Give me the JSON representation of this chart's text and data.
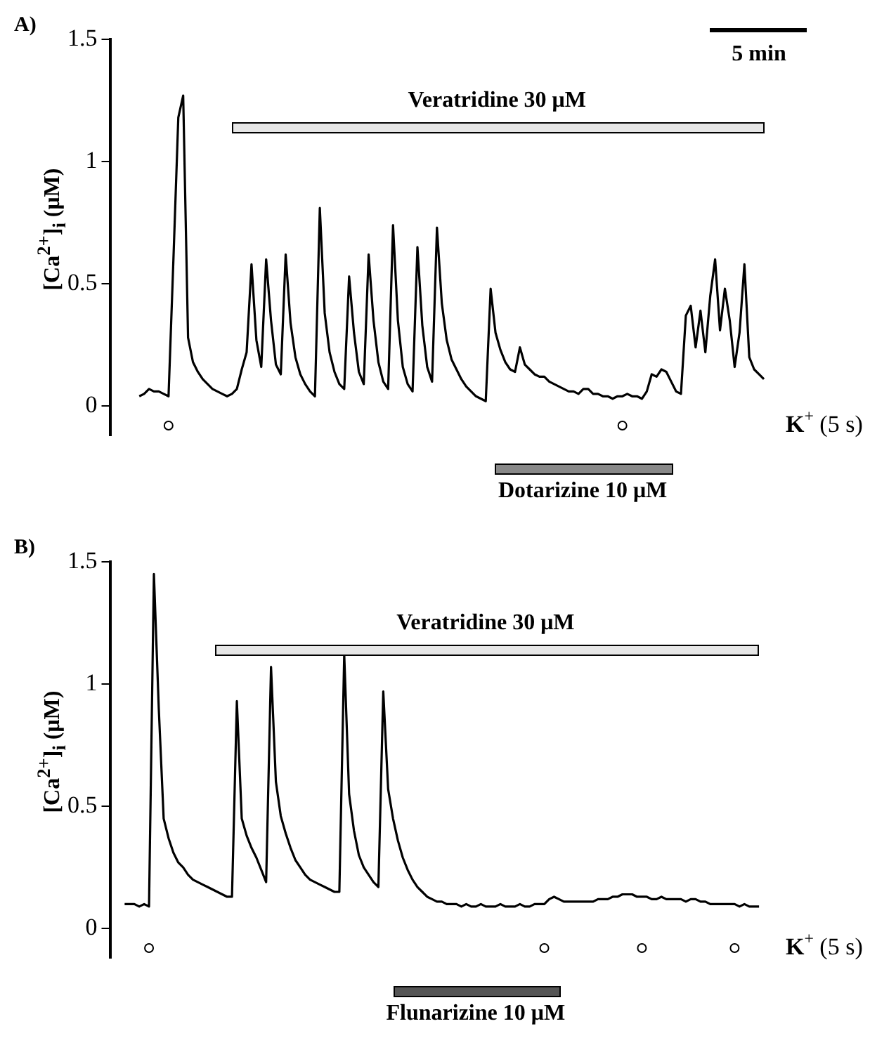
{
  "chart_data": [
    {
      "type": "line",
      "title": "A)",
      "ylabel": "[Ca$^{2+}$]$_{i}$ (μM)",
      "annotations": [
        "5 min",
        "Veratridine 30 μM",
        "Dotarizine 10 μM"
      ],
      "ylim": [
        -0.12,
        1.5
      ],
      "yticks": [
        0,
        0.5,
        1,
        1.5
      ],
      "grid": false,
      "legend": "bottom right",
      "tick_labels": "y",
      "categories": [
        null,
        null,
        null,
        null,
        null,
        null,
        null,
        null,
        null,
        null,
        null,
        null,
        null,
        null,
        null,
        null,
        null,
        null,
        null,
        null,
        null,
        null,
        null,
        null,
        null,
        null,
        null,
        null,
        null,
        null,
        null,
        null,
        null,
        null,
        null,
        null,
        null,
        null,
        null,
        null,
        null,
        null,
        null,
        null,
        null,
        null,
        null,
        null,
        null,
        null,
        null,
        null,
        null,
        null,
        null,
        null,
        null,
        null,
        null,
        null,
        null,
        null,
        null,
        null,
        null,
        null,
        null,
        null,
        null,
        null,
        null,
        null,
        null,
        null,
        null,
        null,
        null,
        null,
        null,
        null,
        null,
        null,
        null,
        null,
        null,
        null,
        null,
        null,
        null,
        null,
        null,
        null,
        null,
        null,
        null,
        null,
        null,
        null,
        null,
        null,
        null,
        null,
        null,
        null,
        null,
        null,
        null,
        null,
        null,
        null,
        null,
        null,
        null,
        null,
        null,
        null,
        null,
        null,
        null,
        null,
        null,
        null,
        null,
        null,
        null,
        null,
        null,
        null,
        null,
        null,
        null,
        null,
        null,
        null,
        null,
        null
      ],
      "series": [
        {
          "color": "#000000",
          "marker": "none",
          "line_style": "solid",
          "values": [
            null,
            null,
            null,
            null,
            null,
            null,
            0.04,
            0.05,
            0.07,
            0.06,
            0.06,
            0.05,
            0.04,
            0.6,
            1.18,
            1.27,
            0.28,
            0.18,
            0.14,
            0.11,
            0.09,
            0.07,
            0.06,
            0.05,
            0.04,
            0.05,
            0.07,
            0.15,
            0.22,
            0.58,
            0.27,
            0.16,
            0.6,
            0.35,
            0.17,
            0.13,
            0.62,
            0.34,
            0.2,
            0.13,
            0.09,
            0.06,
            0.04,
            0.81,
            0.38,
            0.22,
            0.14,
            0.09,
            0.07,
            0.53,
            0.3,
            0.14,
            0.09,
            0.62,
            0.35,
            0.18,
            0.1,
            0.07,
            0.74,
            0.35,
            0.16,
            0.09,
            0.06,
            0.65,
            0.33,
            0.16,
            0.1,
            0.73,
            0.42,
            0.27,
            0.19,
            0.15,
            0.11,
            0.08,
            0.06,
            0.04,
            0.03,
            0.02,
            0.48,
            0.3,
            0.23,
            0.18,
            0.15,
            0.14,
            0.24,
            0.17,
            0.15,
            0.13,
            0.12,
            0.12,
            0.1,
            0.09,
            0.08,
            0.07,
            0.06,
            0.06,
            0.05,
            0.07,
            0.07,
            0.05,
            0.05,
            0.04,
            0.04,
            0.03,
            0.04,
            0.04,
            0.05,
            0.04,
            0.04,
            0.03,
            0.06,
            0.13,
            0.12,
            0.15,
            0.14,
            0.1,
            0.06,
            0.05,
            0.37,
            0.41,
            0.24,
            0.39,
            0.22,
            0.45,
            0.6,
            0.31,
            0.48,
            0.35,
            0.16,
            0.3,
            0.58,
            0.2,
            0.15,
            0.13,
            0.11,
            null
          ]
        },
        {
          "type": "scatter",
          "name": "K$^{+}$ (5 s)",
          "color": "#000000",
          "marker": "circle",
          "values": [
            null,
            null,
            null,
            null,
            null,
            null,
            null,
            null,
            null,
            null,
            null,
            null,
            -0.08,
            null,
            null,
            null,
            null,
            null,
            null,
            null,
            null,
            null,
            null,
            null,
            null,
            null,
            null,
            null,
            null,
            null,
            null,
            null,
            null,
            null,
            null,
            null,
            null,
            null,
            null,
            null,
            null,
            null,
            null,
            null,
            null,
            null,
            null,
            null,
            null,
            null,
            null,
            null,
            null,
            null,
            null,
            null,
            null,
            null,
            null,
            null,
            null,
            null,
            null,
            null,
            null,
            null,
            null,
            null,
            null,
            null,
            null,
            null,
            null,
            null,
            null,
            null,
            null,
            null,
            null,
            null,
            null,
            null,
            null,
            null,
            null,
            null,
            null,
            null,
            null,
            null,
            null,
            null,
            null,
            null,
            null,
            null,
            null,
            null,
            null,
            null,
            null,
            null,
            null,
            null,
            null,
            -0.08,
            null,
            null,
            null,
            null,
            null,
            null,
            null,
            null,
            null,
            null,
            null,
            null,
            null,
            null,
            null,
            null,
            null,
            null,
            null,
            null,
            null,
            null,
            null,
            null,
            null,
            null,
            null,
            null,
            null,
            null
          ]
        }
      ]
    },
    {
      "type": "line",
      "title": "B)",
      "ylabel": "[Ca$^{2+}$]$_{i}$ (μM)",
      "annotations": [
        "Veratridine 30 μM",
        "Flunarizine 10 μM"
      ],
      "ylim": [
        -0.12,
        1.5
      ],
      "yticks": [
        0,
        0.5,
        1,
        1.5
      ],
      "grid": false,
      "legend": "bottom right",
      "tick_labels": "y",
      "categories": [
        null,
        null,
        null,
        null,
        null,
        null,
        null,
        null,
        null,
        null,
        null,
        null,
        null,
        null,
        null,
        null,
        null,
        null,
        null,
        null,
        null,
        null,
        null,
        null,
        null,
        null,
        null,
        null,
        null,
        null,
        null,
        null,
        null,
        null,
        null,
        null,
        null,
        null,
        null,
        null,
        null,
        null,
        null,
        null,
        null,
        null,
        null,
        null,
        null,
        null,
        null,
        null,
        null,
        null,
        null,
        null,
        null,
        null,
        null,
        null,
        null,
        null,
        null,
        null,
        null,
        null,
        null,
        null,
        null,
        null,
        null,
        null,
        null,
        null,
        null,
        null,
        null,
        null,
        null,
        null,
        null,
        null,
        null,
        null,
        null,
        null,
        null,
        null,
        null,
        null,
        null,
        null,
        null,
        null,
        null,
        null,
        null,
        null,
        null,
        null,
        null,
        null,
        null,
        null,
        null,
        null,
        null,
        null,
        null,
        null,
        null,
        null,
        null,
        null,
        null,
        null,
        null,
        null,
        null,
        null,
        null,
        null,
        null,
        null,
        null,
        null,
        null,
        null,
        null,
        null,
        null,
        null,
        null,
        null,
        null,
        null
      ],
      "series": [
        {
          "color": "#000000",
          "marker": "none",
          "line_style": "solid",
          "values": [
            null,
            null,
            null,
            0.1,
            0.1,
            0.1,
            0.09,
            0.1,
            0.09,
            1.45,
            0.9,
            0.45,
            0.37,
            0.31,
            0.27,
            0.25,
            0.22,
            0.2,
            0.19,
            0.18,
            0.17,
            0.16,
            0.15,
            0.14,
            0.13,
            0.13,
            0.93,
            0.45,
            0.38,
            0.33,
            0.29,
            0.24,
            0.19,
            1.07,
            0.6,
            0.46,
            0.39,
            0.33,
            0.28,
            0.25,
            0.22,
            0.2,
            0.19,
            0.18,
            0.17,
            0.16,
            0.15,
            0.15,
            1.12,
            0.55,
            0.4,
            0.3,
            0.25,
            0.22,
            0.19,
            0.17,
            0.97,
            0.57,
            0.45,
            0.36,
            0.29,
            0.24,
            0.2,
            0.17,
            0.15,
            0.13,
            0.12,
            0.11,
            0.11,
            0.1,
            0.1,
            0.1,
            0.09,
            0.1,
            0.09,
            0.09,
            0.1,
            0.09,
            0.09,
            0.09,
            0.1,
            0.09,
            0.09,
            0.09,
            0.1,
            0.09,
            0.09,
            0.1,
            0.1,
            0.1,
            0.12,
            0.13,
            0.12,
            0.11,
            0.11,
            0.11,
            0.11,
            0.11,
            0.11,
            0.11,
            0.12,
            0.12,
            0.12,
            0.13,
            0.13,
            0.14,
            0.14,
            0.14,
            0.13,
            0.13,
            0.13,
            0.12,
            0.12,
            0.13,
            0.12,
            0.12,
            0.12,
            0.12,
            0.11,
            0.12,
            0.12,
            0.11,
            0.11,
            0.1,
            0.1,
            0.1,
            0.1,
            0.1,
            0.1,
            0.09,
            0.1,
            0.09,
            0.09,
            0.09,
            null,
            null
          ]
        },
        {
          "type": "scatter",
          "name": "K$^{+}$ (5 s)",
          "color": "#000000",
          "marker": "circle",
          "values": [
            null,
            null,
            null,
            null,
            null,
            null,
            null,
            null,
            -0.08,
            null,
            null,
            null,
            null,
            null,
            null,
            null,
            null,
            null,
            null,
            null,
            null,
            null,
            null,
            null,
            null,
            null,
            null,
            null,
            null,
            null,
            null,
            null,
            null,
            null,
            null,
            null,
            null,
            null,
            null,
            null,
            null,
            null,
            null,
            null,
            null,
            null,
            null,
            null,
            null,
            null,
            null,
            null,
            null,
            null,
            null,
            null,
            null,
            null,
            null,
            null,
            null,
            null,
            null,
            null,
            null,
            null,
            null,
            null,
            null,
            null,
            null,
            null,
            null,
            null,
            null,
            null,
            null,
            null,
            null,
            null,
            null,
            null,
            null,
            null,
            null,
            null,
            null,
            null,
            null,
            -0.08,
            null,
            null,
            null,
            null,
            null,
            null,
            null,
            null,
            null,
            null,
            null,
            null,
            null,
            null,
            null,
            null,
            null,
            null,
            null,
            -0.08,
            null,
            null,
            null,
            null,
            null,
            null,
            null,
            null,
            null,
            null,
            null,
            null,
            null,
            null,
            null,
            null,
            null,
            null,
            -0.08,
            null,
            null,
            null,
            null,
            null,
            null,
            null
          ]
        }
      ]
    }
  ]
}
